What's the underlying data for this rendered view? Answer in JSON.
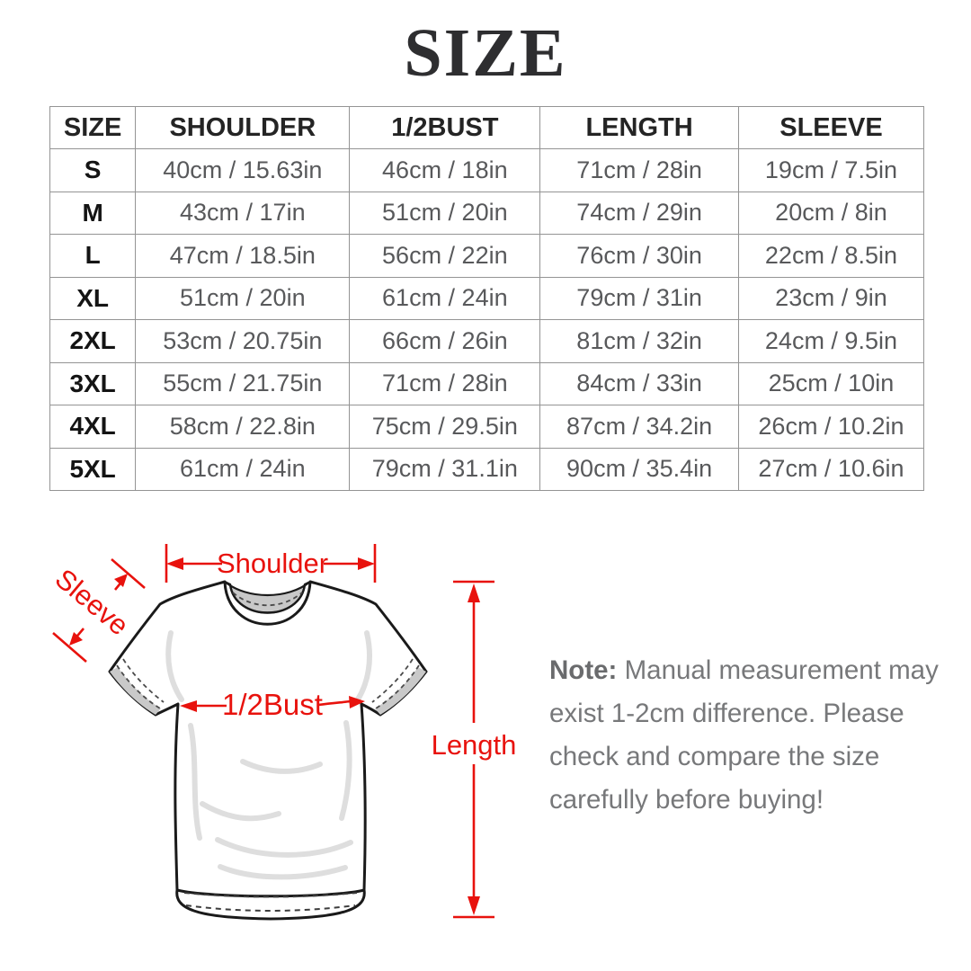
{
  "title": "SIZE",
  "table": {
    "headers": [
      "SIZE",
      "SHOULDER",
      "1/2BUST",
      "LENGTH",
      "SLEEVE"
    ],
    "rows": [
      {
        "size": "S",
        "cells": [
          "40cm / 15.63in",
          "46cm / 18in",
          "71cm / 28in",
          "19cm / 7.5in"
        ]
      },
      {
        "size": "M",
        "cells": [
          "43cm / 17in",
          "51cm / 20in",
          "74cm / 29in",
          "20cm / 8in"
        ]
      },
      {
        "size": "L",
        "cells": [
          "47cm / 18.5in",
          "56cm / 22in",
          "76cm / 30in",
          "22cm / 8.5in"
        ]
      },
      {
        "size": "XL",
        "cells": [
          "51cm / 20in",
          "61cm / 24in",
          "79cm / 31in",
          "23cm / 9in"
        ]
      },
      {
        "size": "2XL",
        "cells": [
          "53cm / 20.75in",
          "66cm / 26in",
          "81cm / 32in",
          "24cm / 9.5in"
        ]
      },
      {
        "size": "3XL",
        "cells": [
          "55cm / 21.75in",
          "71cm / 28in",
          "84cm / 33in",
          "25cm / 10in"
        ]
      },
      {
        "size": "4XL",
        "cells": [
          "58cm / 22.8in",
          "75cm / 29.5in",
          "87cm / 34.2in",
          "26cm / 10.2in"
        ]
      },
      {
        "size": "5XL",
        "cells": [
          "61cm / 24in",
          "79cm / 31.1in",
          "90cm / 35.4in",
          "27cm / 10.6in"
        ]
      }
    ]
  },
  "diagram": {
    "shoulder_label": "Shoulder",
    "sleeve_label": "Sleeve",
    "bust_label": "1/2Bust",
    "length_label": "Length",
    "accent_color": "#e8120d"
  },
  "note": {
    "label": "Note:",
    "lines": [
      "Manual measurement may",
      "exist 1-2cm difference. Please",
      "check and compare the size",
      "carefully before buying!"
    ]
  }
}
